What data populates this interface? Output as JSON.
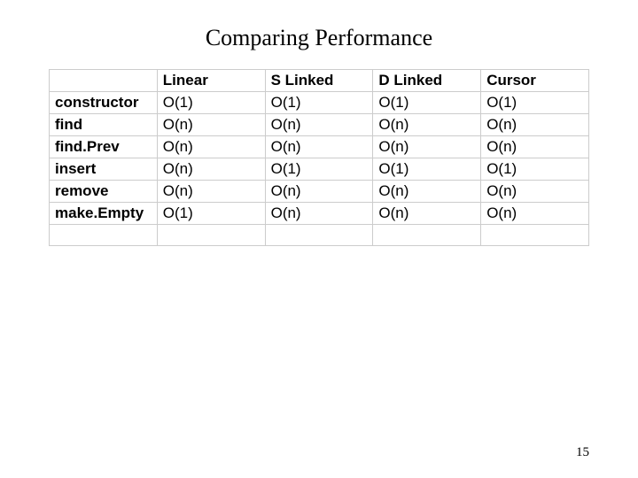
{
  "title": "Comparing Performance",
  "pageNumber": "15",
  "table": {
    "columns": [
      "",
      "Linear",
      "S Linked",
      "D Linked",
      "Cursor"
    ],
    "rows": [
      [
        "constructor",
        "O(1)",
        "O(1)",
        "O(1)",
        "O(1)"
      ],
      [
        "find",
        "O(n)",
        "O(n)",
        "O(n)",
        "O(n)"
      ],
      [
        "find.Prev",
        "O(n)",
        "O(n)",
        "O(n)",
        "O(n)"
      ],
      [
        "insert",
        "O(n)",
        "O(1)",
        "O(1)",
        "O(1)"
      ],
      [
        "remove",
        "O(n)",
        "O(n)",
        "O(n)",
        "O(n)"
      ],
      [
        "make.Empty",
        "O(1)",
        "O(n)",
        "O(n)",
        "O(n)"
      ],
      [
        "",
        "",
        "",
        "",
        ""
      ]
    ],
    "border_color": "#cccccc",
    "background_color": "#ffffff",
    "header_fontweight": "bold",
    "rowlabel_fontweight": "bold",
    "cell_fontsize": 17,
    "cell_fontfamily": "Arial",
    "title_fontfamily": "Times New Roman",
    "title_fontsize": 26
  }
}
